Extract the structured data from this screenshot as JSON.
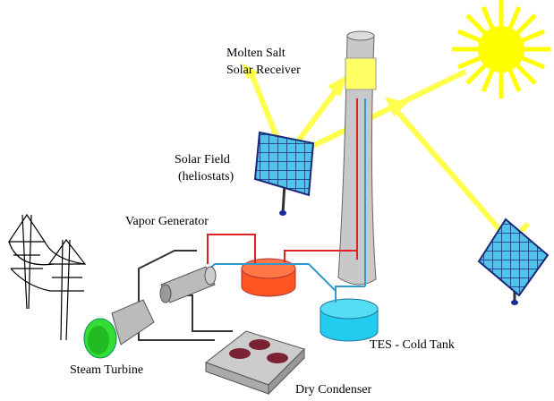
{
  "labels": [
    {
      "lines": [
        "Molten Salt",
        "Solar Receiver"
      ]
    },
    {
      "lines": [
        "Solar Field",
        "(heliostats)"
      ]
    },
    {
      "lines": [
        "Vapor Generator"
      ]
    },
    {
      "lines": [
        "Steam Turbine"
      ]
    },
    {
      "lines": [
        "Dry Condenser"
      ]
    },
    {
      "lines": [
        "TES - Cold Tank"
      ]
    }
  ]
}
